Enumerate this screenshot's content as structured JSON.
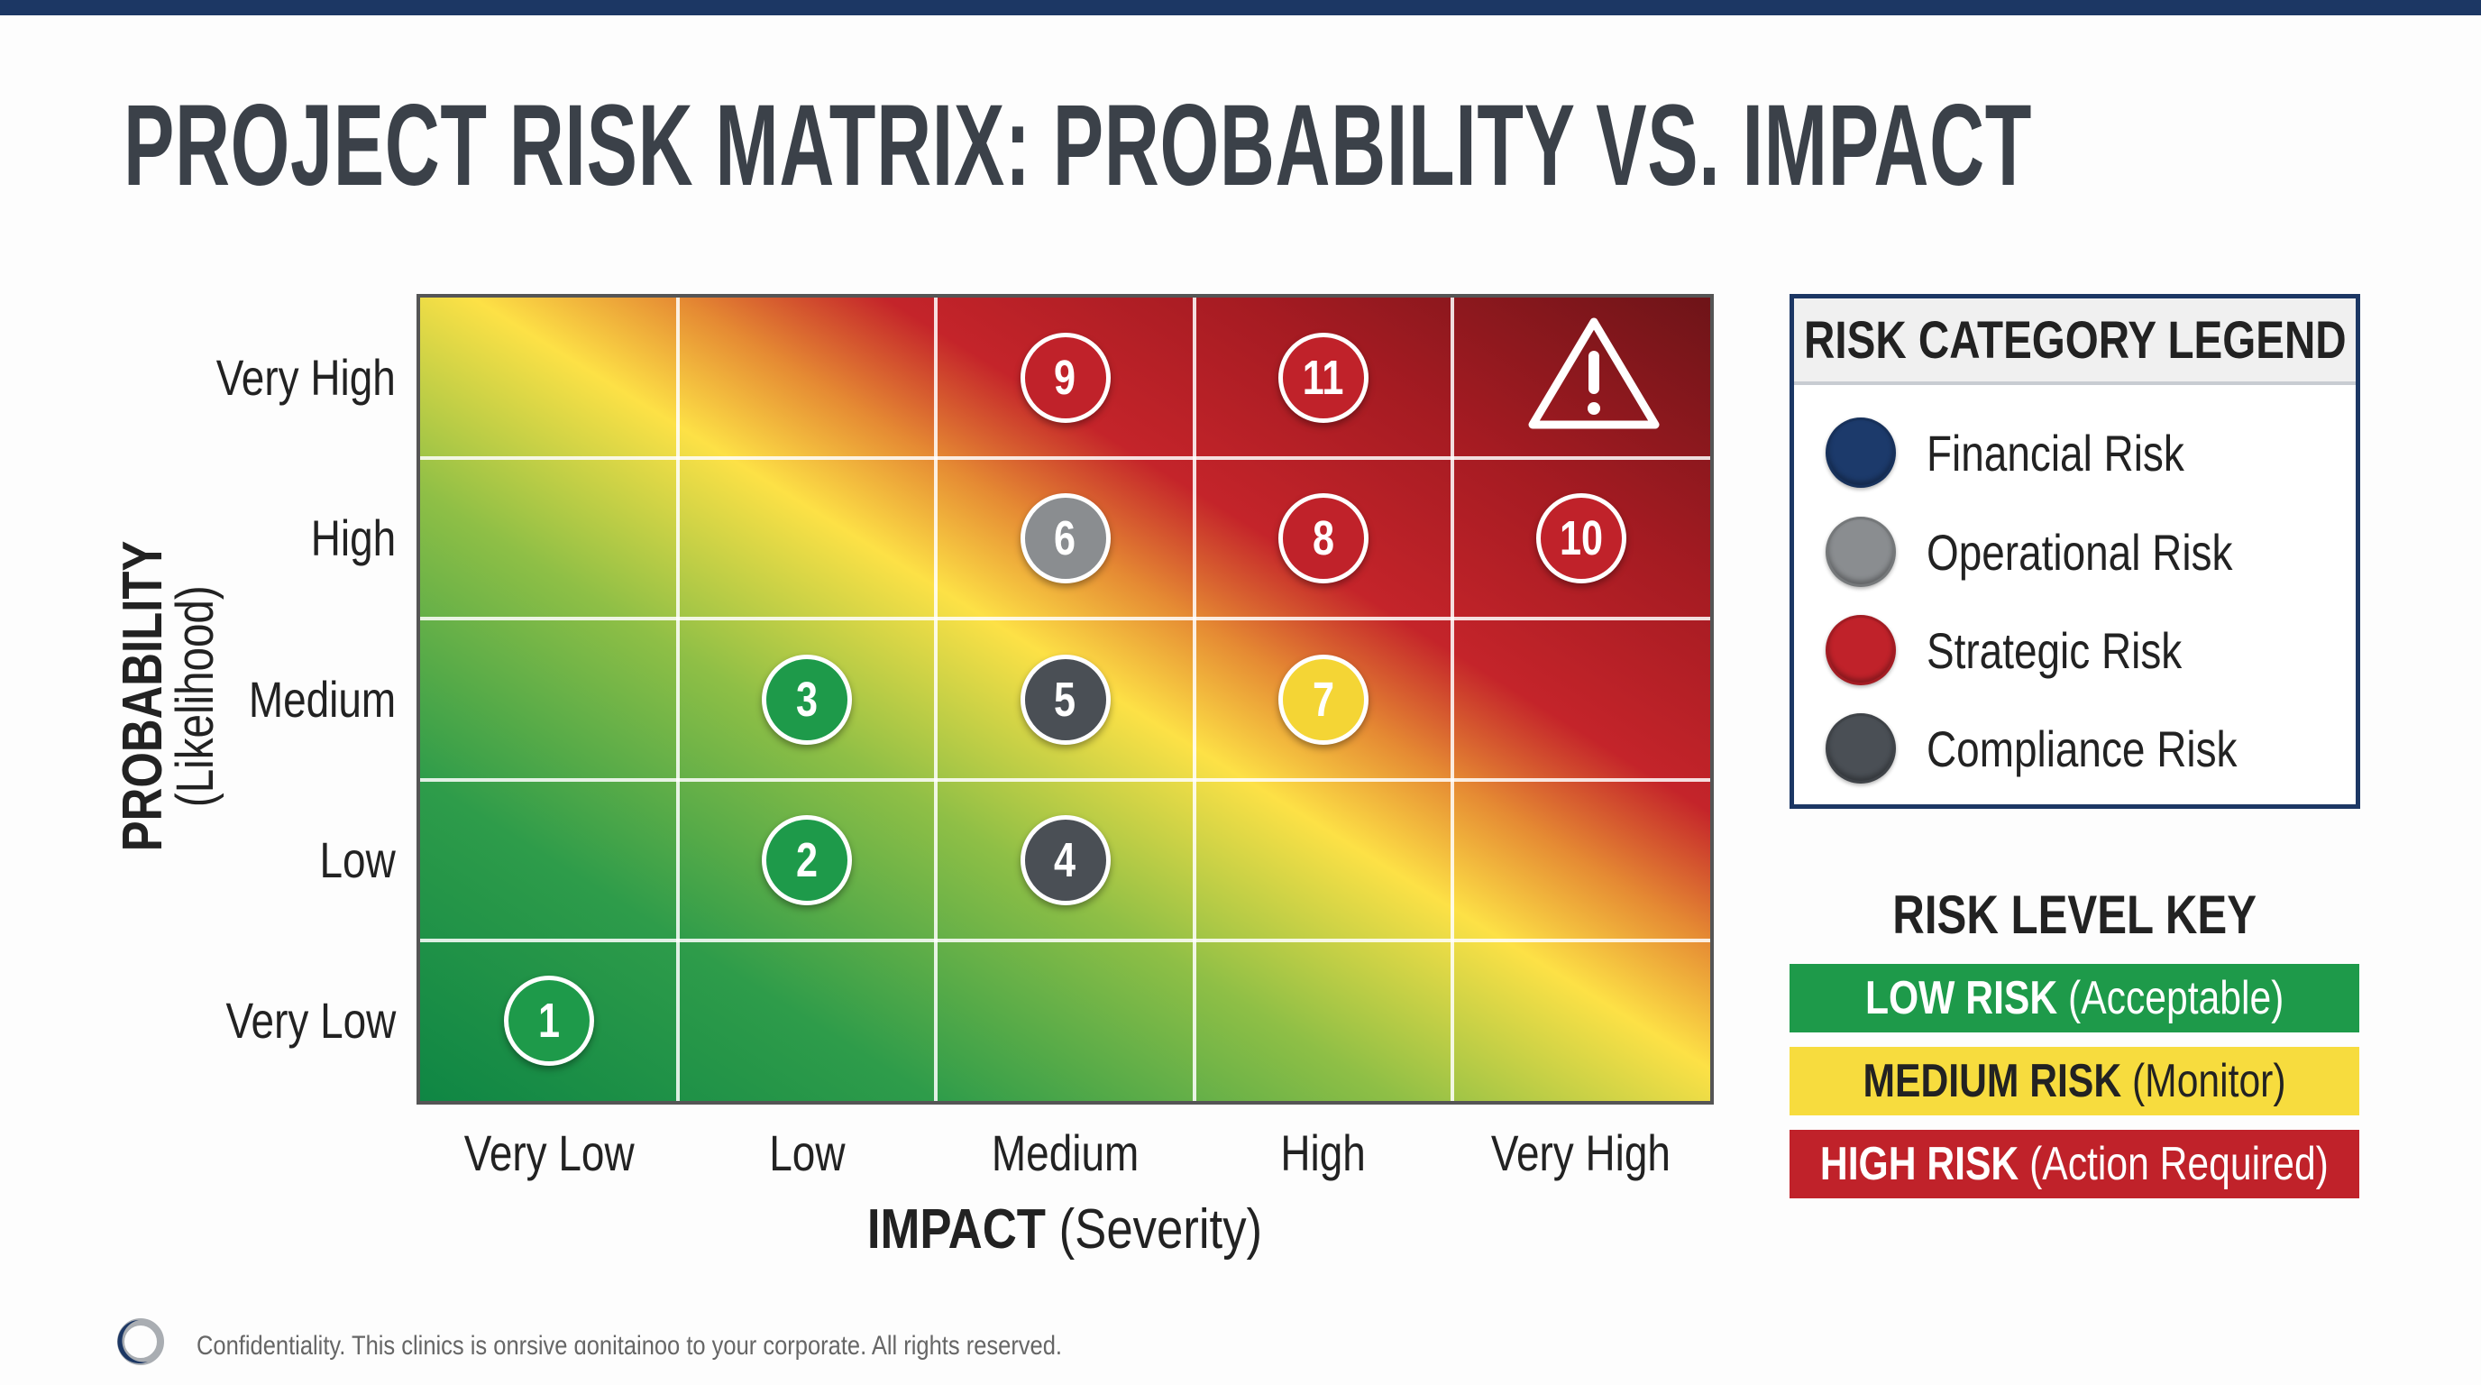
{
  "title": "PROJECT RISK MATRIX: PROBABILITY VS. IMPACT",
  "colors": {
    "top_bar": "#1c3764",
    "financial": "#1c3a6b",
    "operational": "#8a8d90",
    "strategic": "#c0222a",
    "compliance": "#4a4f55",
    "low_risk": "#1e9a4a",
    "medium_risk": "#f7dc3e",
    "high_risk": "#c0222a",
    "yellow_marker": "#f4d535",
    "green_marker": "#1e9a4a"
  },
  "chart_data": {
    "type": "heatmap",
    "title": "PROJECT RISK MATRIX: PROBABILITY VS. IMPACT",
    "xlabel_bold": "IMPACT",
    "xlabel_rest": "(Severity)",
    "ylabel_bold": "PROBABILITY",
    "ylabel_rest": "(Likelihood)",
    "x_categories": [
      "Very Low",
      "Low",
      "Medium",
      "High",
      "Very High"
    ],
    "y_categories": [
      "Very Low",
      "Low",
      "Medium",
      "High",
      "Very High"
    ],
    "gradient": "green (bottom-left) to yellow to red (top-right)",
    "grid": true,
    "points": [
      {
        "id": "1",
        "impact": "Very Low",
        "probability": "Very Low",
        "color": "#1e9a4a"
      },
      {
        "id": "2",
        "impact": "Low",
        "probability": "Low",
        "color": "#1e9a4a"
      },
      {
        "id": "3",
        "impact": "Low",
        "probability": "Medium",
        "color": "#1e9a4a"
      },
      {
        "id": "4",
        "impact": "Medium",
        "probability": "Low",
        "color": "#4a4f55"
      },
      {
        "id": "5",
        "impact": "Medium",
        "probability": "Medium",
        "color": "#4a4f55"
      },
      {
        "id": "6",
        "impact": "Medium",
        "probability": "High",
        "color": "#8a8d90"
      },
      {
        "id": "7",
        "impact": "High",
        "probability": "Medium",
        "color": "#f4d535"
      },
      {
        "id": "8",
        "impact": "High",
        "probability": "High",
        "color": "#c0222a"
      },
      {
        "id": "9",
        "impact": "Medium",
        "probability": "Very High",
        "color": "#c0222a"
      },
      {
        "id": "10",
        "impact": "Very High",
        "probability": "High",
        "color": "#c0222a"
      },
      {
        "id": "11",
        "impact": "High",
        "probability": "Very High",
        "color": "#c0222a"
      }
    ],
    "warning_icon": {
      "impact": "Very High",
      "probability": "Very High",
      "icon": "warning-triangle-icon"
    }
  },
  "legend": {
    "title": "RISK CATEGORY LEGEND",
    "items": [
      {
        "label": "Financial Risk",
        "color": "#1c3a6b"
      },
      {
        "label": "Operational Risk",
        "color": "#8a8d90"
      },
      {
        "label": "Strategic Risk",
        "color": "#c0222a"
      },
      {
        "label": "Compliance Risk",
        "color": "#4a4f55"
      }
    ]
  },
  "key": {
    "title": "RISK LEVEL KEY",
    "levels": [
      {
        "bold": "LOW RISK",
        "rest": "(Acceptable)",
        "color": "#1e9a4a",
        "text_color": "#ffffff"
      },
      {
        "bold": "MEDIUM RISK",
        "rest": "(Monitor)",
        "color": "#f7dc3e",
        "text_color": "#222222"
      },
      {
        "bold": "HIGH RISK",
        "rest": "(Action Required)",
        "color": "#c0222a",
        "text_color": "#ffffff"
      }
    ]
  },
  "footer": {
    "text": "Confidentiality. This clinics is onrsive ɑonitainoo to your corporate. All rights reserved.",
    "logo_icon": "ring-logo-icon"
  }
}
